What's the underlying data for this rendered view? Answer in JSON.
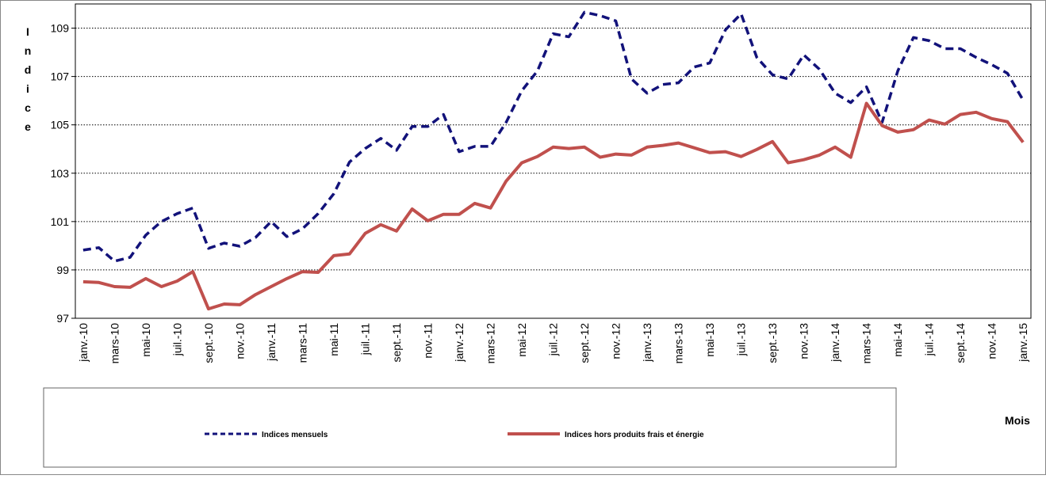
{
  "chart_data": {
    "type": "line",
    "y_label": "Indice",
    "x_label": "Mois",
    "categories": [
      "janv.-10",
      null,
      "mars-10",
      null,
      "mai-10",
      null,
      "juil.-10",
      null,
      "sept.-10",
      null,
      "nov.-10",
      null,
      "janv.-11",
      null,
      "mars-11",
      null,
      "mai-11",
      null,
      "juil.-11",
      null,
      "sept.-11",
      null,
      "nov.-11",
      null,
      "janv.-12",
      null,
      "mars-12",
      null,
      "mai-12",
      null,
      "juil.-12",
      null,
      "sept.-12",
      null,
      "nov.-12",
      null,
      "janv.-13",
      null,
      "mars-13",
      null,
      "mai-13",
      null,
      "juil.-13",
      null,
      "sept.-13",
      null,
      "nov.-13",
      null,
      "janv.-14",
      null,
      "mars-14",
      null,
      "mai-14",
      null,
      "juil.-14",
      null,
      "sept.-14",
      null,
      "nov.-14",
      null,
      "janv.-15"
    ],
    "series": [
      {
        "name": "Indices mensuels",
        "color": "#12127a",
        "dashed": true,
        "values": [
          99.82,
          99.92,
          99.36,
          99.52,
          100.44,
          101.0,
          101.33,
          101.56,
          99.89,
          100.11,
          99.98,
          100.34,
          101.0,
          100.38,
          100.7,
          101.33,
          102.15,
          103.46,
          104.02,
          104.44,
          103.95,
          104.93,
          104.93,
          105.43,
          103.89,
          104.11,
          104.11,
          105.1,
          106.41,
          107.23,
          108.77,
          108.64,
          109.66,
          109.52,
          109.3,
          106.9,
          106.31,
          106.67,
          106.74,
          107.39,
          107.56,
          108.93,
          109.59,
          107.79,
          107.07,
          106.9,
          107.89,
          107.3,
          106.31,
          105.92,
          106.57,
          105.1,
          107.23,
          108.61,
          108.48,
          108.15,
          108.15,
          107.79,
          107.49,
          107.13,
          106.02
        ]
      },
      {
        "name": "Indices  hors produits frais et énergie",
        "color": "#c0504d",
        "dashed": false,
        "values": [
          98.51,
          98.48,
          98.31,
          98.28,
          98.64,
          98.31,
          98.54,
          98.93,
          97.39,
          97.59,
          97.56,
          97.98,
          98.31,
          98.64,
          98.93,
          98.9,
          99.59,
          99.66,
          100.51,
          100.87,
          100.61,
          101.52,
          101.03,
          101.3,
          101.3,
          101.75,
          101.56,
          102.67,
          103.43,
          103.69,
          104.08,
          104.02,
          104.08,
          103.66,
          103.79,
          103.75,
          104.08,
          104.15,
          104.25,
          104.05,
          103.85,
          103.89,
          103.69,
          103.98,
          104.31,
          103.43,
          103.56,
          103.75,
          104.08,
          103.66,
          105.89,
          104.97,
          104.7,
          104.8,
          105.2,
          105.03,
          105.43,
          105.52,
          105.26,
          105.13,
          104.28
        ]
      }
    ],
    "ylim": [
      97,
      110
    ],
    "yticks": [
      97,
      99,
      101,
      103,
      105,
      107,
      109
    ],
    "grid": true
  }
}
